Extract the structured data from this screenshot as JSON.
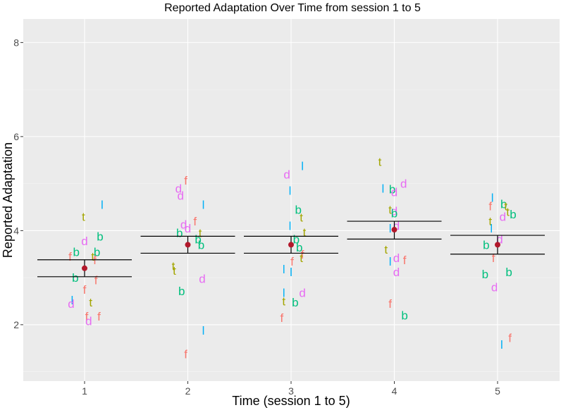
{
  "chart_data": {
    "type": "scatter",
    "title": "Reported Adaptation Over Time from session 1 to 5",
    "xlabel": "Time (session 1 to 5)",
    "ylabel": "Reported Adaptation",
    "categories": [
      "1",
      "2",
      "3",
      "4",
      "5"
    ],
    "ylim": [
      0.8,
      8.5
    ],
    "y_ticks": [
      2,
      4,
      6,
      8
    ],
    "grid": true,
    "series_colors": {
      "f": "#F8766D",
      "t": "#A3A500",
      "b": "#00BF7D",
      "l": "#00B0F6",
      "d": "#E76BF3",
      "mean": "#B2182B",
      "ci": "#000000"
    },
    "points": [
      {
        "label": "l",
        "x": 1.17,
        "y": 4.55
      },
      {
        "label": "t",
        "x": 0.99,
        "y": 4.3
      },
      {
        "label": "b",
        "x": 1.15,
        "y": 3.88
      },
      {
        "label": "d",
        "x": 1.0,
        "y": 3.78
      },
      {
        "label": "b",
        "x": 0.92,
        "y": 3.55
      },
      {
        "label": "b",
        "x": 1.12,
        "y": 3.55
      },
      {
        "label": "f",
        "x": 0.86,
        "y": 3.45
      },
      {
        "label": "t",
        "x": 1.08,
        "y": 3.45
      },
      {
        "label": "f",
        "x": 1.1,
        "y": 3.38
      },
      {
        "label": "b",
        "x": 0.91,
        "y": 3.0
      },
      {
        "label": "f",
        "x": 1.11,
        "y": 2.95
      },
      {
        "label": "f",
        "x": 1.0,
        "y": 2.75
      },
      {
        "label": "t",
        "x": 1.06,
        "y": 2.48
      },
      {
        "label": "l",
        "x": 0.88,
        "y": 2.52
      },
      {
        "label": "d",
        "x": 0.87,
        "y": 2.45
      },
      {
        "label": "f",
        "x": 1.02,
        "y": 2.18
      },
      {
        "label": "f",
        "x": 1.14,
        "y": 2.18
      },
      {
        "label": "d",
        "x": 1.04,
        "y": 2.08
      },
      {
        "label": "f",
        "x": 1.98,
        "y": 5.07
      },
      {
        "label": "d",
        "x": 1.91,
        "y": 4.9
      },
      {
        "label": "d",
        "x": 1.93,
        "y": 4.75
      },
      {
        "label": "l",
        "x": 2.15,
        "y": 4.55
      },
      {
        "label": "f",
        "x": 2.07,
        "y": 4.2
      },
      {
        "label": "d",
        "x": 1.96,
        "y": 4.13
      },
      {
        "label": "d",
        "x": 2.0,
        "y": 4.05
      },
      {
        "label": "b",
        "x": 1.92,
        "y": 3.95
      },
      {
        "label": "t",
        "x": 2.12,
        "y": 3.95
      },
      {
        "label": "b",
        "x": 2.1,
        "y": 3.82
      },
      {
        "label": "b",
        "x": 2.13,
        "y": 3.7
      },
      {
        "label": "t",
        "x": 1.86,
        "y": 3.25
      },
      {
        "label": "t",
        "x": 1.87,
        "y": 3.15
      },
      {
        "label": "d",
        "x": 2.14,
        "y": 2.98
      },
      {
        "label": "b",
        "x": 1.94,
        "y": 2.72
      },
      {
        "label": "l",
        "x": 2.15,
        "y": 1.88
      },
      {
        "label": "f",
        "x": 1.98,
        "y": 1.38
      },
      {
        "label": "l",
        "x": 3.11,
        "y": 5.38
      },
      {
        "label": "d",
        "x": 2.96,
        "y": 5.2
      },
      {
        "label": "l",
        "x": 2.99,
        "y": 4.85
      },
      {
        "label": "b",
        "x": 3.07,
        "y": 4.45
      },
      {
        "label": "t",
        "x": 3.1,
        "y": 4.28
      },
      {
        "label": "l",
        "x": 2.99,
        "y": 4.1
      },
      {
        "label": "t",
        "x": 3.13,
        "y": 3.97
      },
      {
        "label": "b",
        "x": 3.05,
        "y": 3.82
      },
      {
        "label": "b",
        "x": 3.08,
        "y": 3.65
      },
      {
        "label": "f",
        "x": 3.11,
        "y": 3.5
      },
      {
        "label": "t",
        "x": 3.1,
        "y": 3.42
      },
      {
        "label": "f",
        "x": 3.01,
        "y": 3.35
      },
      {
        "label": "l",
        "x": 2.93,
        "y": 3.18
      },
      {
        "label": "l",
        "x": 3.0,
        "y": 3.12
      },
      {
        "label": "d",
        "x": 3.11,
        "y": 2.68
      },
      {
        "label": "l",
        "x": 2.93,
        "y": 2.68
      },
      {
        "label": "t",
        "x": 2.93,
        "y": 2.5
      },
      {
        "label": "b",
        "x": 3.04,
        "y": 2.48
      },
      {
        "label": "f",
        "x": 2.91,
        "y": 2.15
      },
      {
        "label": "t",
        "x": 3.86,
        "y": 5.47
      },
      {
        "label": "d",
        "x": 4.09,
        "y": 5.0
      },
      {
        "label": "l",
        "x": 3.89,
        "y": 4.9
      },
      {
        "label": "b",
        "x": 3.98,
        "y": 4.88
      },
      {
        "label": "d",
        "x": 4.0,
        "y": 4.82
      },
      {
        "label": "t",
        "x": 3.96,
        "y": 4.45
      },
      {
        "label": "d",
        "x": 4.0,
        "y": 4.42
      },
      {
        "label": "b",
        "x": 4.0,
        "y": 4.37
      },
      {
        "label": "l",
        "x": 3.96,
        "y": 4.05
      },
      {
        "label": "d",
        "x": 4.02,
        "y": 4.1
      },
      {
        "label": "t",
        "x": 3.92,
        "y": 3.6
      },
      {
        "label": "d",
        "x": 4.02,
        "y": 3.42
      },
      {
        "label": "f",
        "x": 4.1,
        "y": 3.38
      },
      {
        "label": "l",
        "x": 3.96,
        "y": 3.35
      },
      {
        "label": "d",
        "x": 4.02,
        "y": 3.12
      },
      {
        "label": "f",
        "x": 3.96,
        "y": 2.45
      },
      {
        "label": "b",
        "x": 4.1,
        "y": 2.2
      },
      {
        "label": "b",
        "x": 5.06,
        "y": 4.57
      },
      {
        "label": "l",
        "x": 4.95,
        "y": 4.7
      },
      {
        "label": "f",
        "x": 4.93,
        "y": 4.52
      },
      {
        "label": "t",
        "x": 5.08,
        "y": 4.52
      },
      {
        "label": "t",
        "x": 5.1,
        "y": 4.4
      },
      {
        "label": "d",
        "x": 5.05,
        "y": 4.3
      },
      {
        "label": "b",
        "x": 5.15,
        "y": 4.35
      },
      {
        "label": "t",
        "x": 4.93,
        "y": 4.2
      },
      {
        "label": "l",
        "x": 4.94,
        "y": 4.05
      },
      {
        "label": "d",
        "x": 5.02,
        "y": 3.82
      },
      {
        "label": "b",
        "x": 4.89,
        "y": 3.7
      },
      {
        "label": "f",
        "x": 4.96,
        "y": 3.42
      },
      {
        "label": "b",
        "x": 4.88,
        "y": 3.08
      },
      {
        "label": "b",
        "x": 5.11,
        "y": 3.12
      },
      {
        "label": "d",
        "x": 4.97,
        "y": 2.8
      },
      {
        "label": "f",
        "x": 5.12,
        "y": 1.72
      },
      {
        "label": "l",
        "x": 5.04,
        "y": 1.58
      }
    ],
    "summary": [
      {
        "x": 1,
        "mean": 3.2,
        "lower": 3.02,
        "upper": 3.38
      },
      {
        "x": 2,
        "mean": 3.7,
        "lower": 3.52,
        "upper": 3.88
      },
      {
        "x": 3,
        "mean": 3.7,
        "lower": 3.52,
        "upper": 3.88
      },
      {
        "x": 4,
        "mean": 4.02,
        "lower": 3.82,
        "upper": 4.2
      },
      {
        "x": 5,
        "mean": 3.7,
        "lower": 3.5,
        "upper": 3.9
      }
    ]
  }
}
